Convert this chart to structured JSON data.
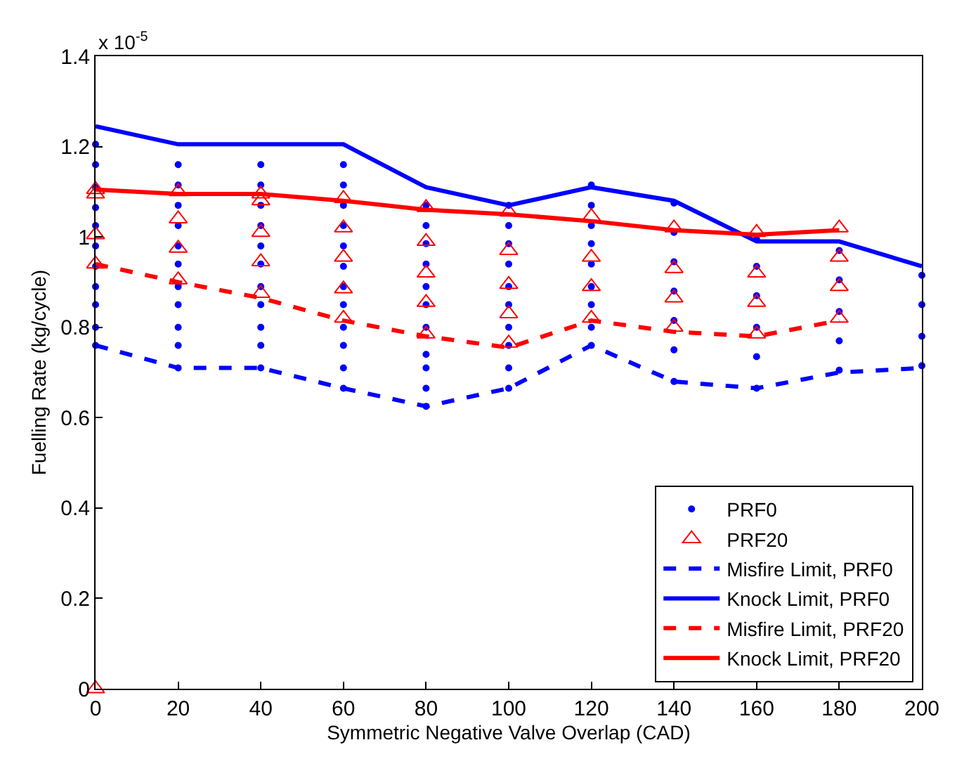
{
  "chart_data": {
    "type": "line",
    "xlabel": "Symmetric Negative Valve Overlap (CAD)",
    "ylabel": "Fuelling Rate (kg/cycle)",
    "annotations": [
      "x 10$^{-5}$"
    ],
    "xlim": [
      0,
      200
    ],
    "xticks": [
      0,
      20,
      40,
      60,
      80,
      100,
      120,
      140,
      160,
      180,
      200
    ],
    "ylim": [
      0,
      1.4
    ],
    "yticks": [
      0,
      0.2,
      0.4,
      0.6,
      0.8,
      1,
      1.2,
      1.4
    ],
    "legend": "bottom right",
    "series": [
      {
        "name": "PRF0",
        "type": "scatter",
        "marker": "circle",
        "color": "#0000ff",
        "x": [
          0,
          0,
          0,
          0,
          0,
          0,
          0,
          0,
          0,
          0,
          0,
          20,
          20,
          20,
          20,
          20,
          20,
          20,
          20,
          20,
          20,
          20,
          40,
          40,
          40,
          40,
          40,
          40,
          40,
          40,
          40,
          40,
          40,
          60,
          60,
          60,
          60,
          60,
          60,
          60,
          60,
          60,
          60,
          60,
          60,
          80,
          80,
          80,
          80,
          80,
          80,
          80,
          80,
          80,
          80,
          80,
          100,
          100,
          100,
          100,
          100,
          100,
          100,
          100,
          100,
          100,
          120,
          120,
          120,
          120,
          120,
          120,
          120,
          120,
          120,
          140,
          140,
          140,
          140,
          140,
          140,
          140,
          160,
          160,
          160,
          160,
          160,
          160,
          180,
          180,
          180,
          180,
          180,
          200,
          200,
          200,
          200
        ],
        "values": [
          0.76,
          0.8,
          0.85,
          0.89,
          0.935,
          0.98,
          1.025,
          1.065,
          1.11,
          1.16,
          1.205,
          0.71,
          0.76,
          0.8,
          0.85,
          0.89,
          0.94,
          0.98,
          1.025,
          1.07,
          1.115,
          1.16,
          0.71,
          0.76,
          0.8,
          0.85,
          0.89,
          0.94,
          0.98,
          1.025,
          1.07,
          1.115,
          1.16,
          0.665,
          0.71,
          0.76,
          0.8,
          0.85,
          0.89,
          0.935,
          0.98,
          1.025,
          1.07,
          1.115,
          1.16,
          0.625,
          0.665,
          0.71,
          0.74,
          0.8,
          0.85,
          0.89,
          0.94,
          0.985,
          1.025,
          1.07,
          0.665,
          0.71,
          0.76,
          0.8,
          0.85,
          0.89,
          0.94,
          0.985,
          1.025,
          1.07,
          0.76,
          0.8,
          0.85,
          0.89,
          0.94,
          0.985,
          1.025,
          1.07,
          1.115,
          0.68,
          0.75,
          0.815,
          0.88,
          0.945,
          1.01,
          1.075,
          0.665,
          0.735,
          0.8,
          0.87,
          0.935,
          0.995,
          0.705,
          0.77,
          0.835,
          0.905,
          0.97,
          0.715,
          0.78,
          0.85,
          0.915
        ]
      },
      {
        "name": "PRF20",
        "type": "scatter",
        "marker": "triangle",
        "color": "#ff0000",
        "x": [
          0,
          0,
          0,
          0,
          0,
          20,
          20,
          20,
          20,
          40,
          40,
          40,
          40,
          40,
          60,
          60,
          60,
          60,
          60,
          80,
          80,
          80,
          80,
          80,
          100,
          100,
          100,
          100,
          100,
          120,
          120,
          120,
          120,
          140,
          140,
          140,
          140,
          160,
          160,
          160,
          160,
          180,
          180,
          180,
          180
        ],
        "values": [
          0,
          0.94,
          1.005,
          1.095,
          1.105,
          0.905,
          0.975,
          1.04,
          1.1,
          0.875,
          0.945,
          1.01,
          1.08,
          1.095,
          0.82,
          0.885,
          0.955,
          1.02,
          1.085,
          0.785,
          0.855,
          0.92,
          0.99,
          1.065,
          0.765,
          0.83,
          0.895,
          0.97,
          1.055,
          0.82,
          0.89,
          0.955,
          1.045,
          0.8,
          0.865,
          0.93,
          1.02,
          0.785,
          0.855,
          0.92,
          1.01,
          0.82,
          0.89,
          0.955,
          1.02
        ]
      },
      {
        "name": "Misfire Limit, PRF0",
        "line_style": "dashed",
        "color": "#0000ff",
        "x": [
          0,
          20,
          40,
          60,
          80,
          100,
          120,
          140,
          160,
          180,
          200
        ],
        "values": [
          0.76,
          0.71,
          0.71,
          0.665,
          0.625,
          0.665,
          0.76,
          0.68,
          0.665,
          0.7,
          0.71
        ]
      },
      {
        "name": "Knock Limit, PRF0",
        "line_style": "solid",
        "color": "#0000ff",
        "x": [
          0,
          20,
          40,
          60,
          80,
          100,
          120,
          140,
          160,
          180,
          200
        ],
        "values": [
          1.245,
          1.205,
          1.205,
          1.205,
          1.11,
          1.07,
          1.11,
          1.08,
          0.99,
          0.99,
          0.935
        ]
      },
      {
        "name": "Misfire Limit, PRF20",
        "line_style": "dashed",
        "color": "#ff0000",
        "x": [
          0,
          20,
          40,
          60,
          80,
          100,
          120,
          140,
          160,
          180
        ],
        "values": [
          0.94,
          0.9,
          0.865,
          0.815,
          0.78,
          0.755,
          0.815,
          0.79,
          0.78,
          0.815
        ]
      },
      {
        "name": "Knock Limit, PRF20",
        "line_style": "solid",
        "color": "#ff0000",
        "x": [
          0,
          20,
          40,
          60,
          80,
          100,
          120,
          140,
          160,
          180
        ],
        "values": [
          1.105,
          1.095,
          1.095,
          1.08,
          1.06,
          1.05,
          1.035,
          1.015,
          1.005,
          1.015
        ]
      }
    ]
  }
}
